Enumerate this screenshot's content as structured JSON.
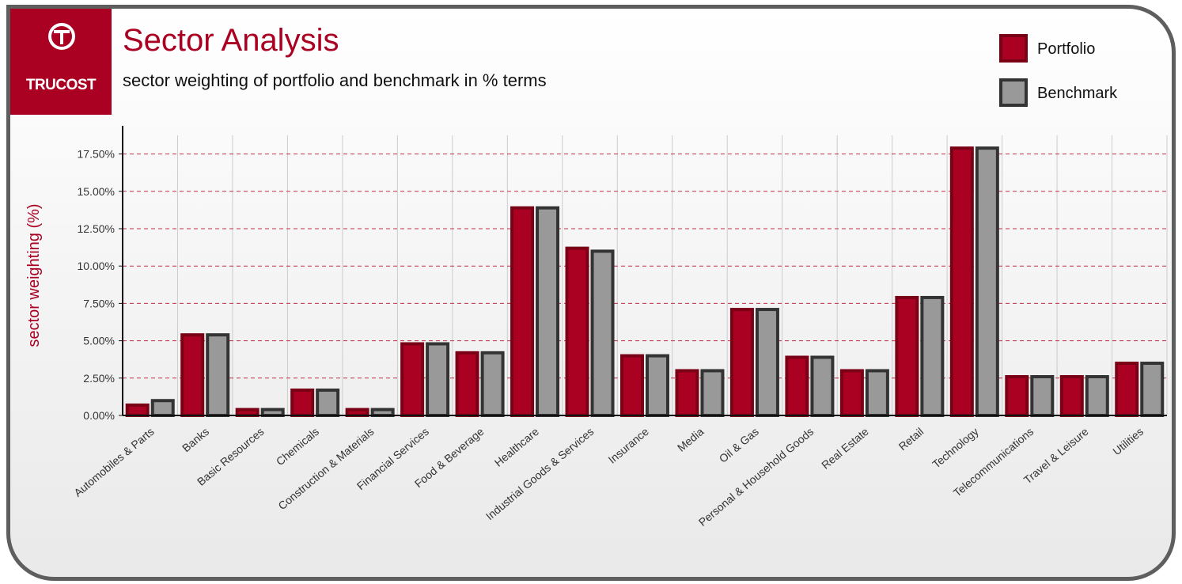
{
  "header": {
    "logo_text": "TRUCOST",
    "title": "Sector Analysis",
    "subtitle": "sector weighting of portfolio and benchmark in % terms"
  },
  "colors": {
    "portfolio": "#aa0022",
    "portfolio_border": "#7a0015",
    "benchmark": "#999999",
    "benchmark_border": "#333333",
    "grid": "#c0304a",
    "title": "#aa0022"
  },
  "chart_data": {
    "type": "bar",
    "ylabel": "sector weighting (%)",
    "ylim": [
      0,
      18.75
    ],
    "yticks": [
      "0.00%",
      "2.50%",
      "5.00%",
      "7.50%",
      "10.00%",
      "12.50%",
      "15.00%",
      "17.50%"
    ],
    "ytick_values": [
      0,
      2.5,
      5,
      7.5,
      10,
      12.5,
      15,
      17.5
    ],
    "grid": true,
    "legend_position": "top-right",
    "categories": [
      "Automobiles & Parts",
      "Banks",
      "Basic Resources",
      "Chemicals",
      "Construction & Materials",
      "Financial Services",
      "Food & Beverage",
      "Healthcare",
      "Industrial Goods & Services",
      "Insurance",
      "Media",
      "Oil & Gas",
      "Personal & Household Goods",
      "Real Estate",
      "Retail",
      "Technology",
      "Telecommunications",
      "Travel & Leisure",
      "Utilities"
    ],
    "series": [
      {
        "name": "Portfolio",
        "values": [
          0.8,
          5.5,
          0.5,
          1.8,
          0.5,
          4.9,
          4.3,
          14.0,
          11.3,
          4.1,
          3.1,
          7.2,
          4.0,
          3.1,
          8.0,
          18.0,
          2.7,
          2.7,
          3.6
        ]
      },
      {
        "name": "Benchmark",
        "values": [
          1.1,
          5.5,
          0.5,
          1.8,
          0.5,
          4.9,
          4.3,
          14.0,
          11.1,
          4.1,
          3.1,
          7.2,
          4.0,
          3.1,
          8.0,
          18.0,
          2.7,
          2.7,
          3.6
        ]
      }
    ]
  }
}
